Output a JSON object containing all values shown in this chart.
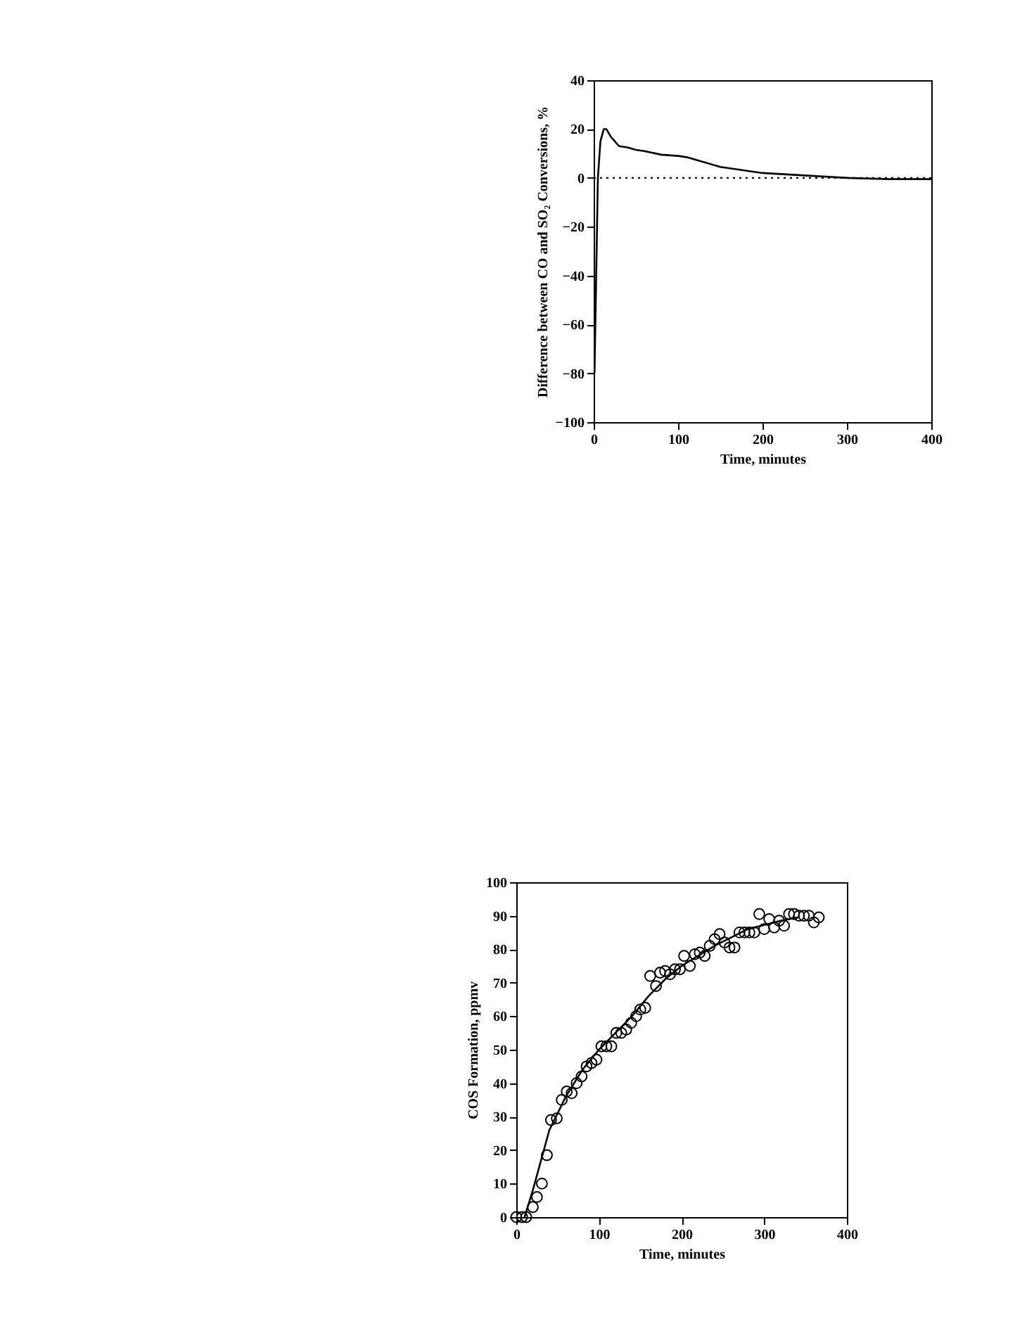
{
  "chart_data": [
    {
      "type": "line",
      "xlabel": "Time, minutes",
      "ylabel": "Difference between CO and SO₂ Conversions, %",
      "xlim": [
        0,
        400
      ],
      "ylim": [
        -100,
        40
      ],
      "xticks": [
        0,
        100,
        200,
        300,
        400
      ],
      "yticks": [
        -100,
        -80,
        -60,
        -40,
        -20,
        0,
        20,
        40
      ],
      "grid": false,
      "series": [
        {
          "color": "#000000",
          "x": [
            1,
            3,
            5,
            8,
            12,
            15,
            20,
            30,
            40,
            50,
            60,
            80,
            100,
            110,
            130,
            150,
            170,
            200,
            250,
            300,
            350,
            400
          ],
          "values": [
            -80,
            -40,
            0,
            15,
            20,
            20,
            17,
            13,
            12.5,
            11.5,
            11,
            9.5,
            9,
            8.5,
            6.5,
            4.5,
            3.5,
            2,
            1,
            0,
            -0.5,
            -0.5
          ]
        }
      ],
      "ref_lines": [
        {
          "axis": "y",
          "value": 0,
          "color": "#000000",
          "line_style": "dotted"
        }
      ]
    },
    {
      "type": "scatter",
      "xlabel": "Time, minutes",
      "ylabel": "COS Formation, ppmv",
      "xlim": [
        0,
        400
      ],
      "ylim": [
        0,
        100
      ],
      "xticks": [
        0,
        100,
        200,
        300,
        400
      ],
      "yticks": [
        0,
        10,
        20,
        30,
        40,
        50,
        60,
        70,
        80,
        90,
        100
      ],
      "grid": false,
      "series": [
        {
          "marker": "circle",
          "color": "#000000",
          "x": [
            0,
            7,
            12,
            20,
            25,
            31,
            37,
            42,
            49,
            55,
            61,
            67,
            73,
            79,
            85,
            91,
            97,
            103,
            109,
            115,
            121,
            127,
            133,
            139,
            145,
            150,
            156,
            162,
            169,
            174,
            180,
            186,
            192,
            198,
            203,
            210,
            216,
            222,
            228,
            234,
            240,
            246,
            252,
            258,
            264,
            270,
            276,
            282,
            288,
            294,
            300,
            306,
            312,
            318,
            324,
            330,
            336,
            342,
            348,
            354,
            360,
            366
          ],
          "values": [
            0,
            0,
            0,
            3,
            6,
            10,
            18.5,
            29,
            29.5,
            35,
            37.5,
            37,
            40,
            42,
            45,
            46,
            47,
            51,
            51,
            51,
            55,
            55,
            56,
            58,
            60,
            62,
            62.5,
            72,
            69,
            73,
            73.5,
            72.5,
            74,
            74,
            78,
            75,
            78.5,
            79,
            78,
            81,
            83,
            84.5,
            82,
            80.5,
            80.5,
            85,
            85,
            85,
            85,
            90.5,
            86,
            89,
            86.5,
            88.5,
            87,
            90.5,
            90.5,
            90,
            90,
            90,
            88,
            89.5
          ]
        },
        {
          "type": "line",
          "color": "#000000",
          "x": [
            10,
            20,
            40,
            60,
            80,
            100,
            120,
            140,
            160,
            180,
            200,
            240,
            280,
            320,
            340
          ],
          "values": [
            0,
            8,
            26,
            36,
            44,
            50,
            55,
            60,
            66,
            71,
            75,
            81,
            86,
            88.5,
            89.5
          ]
        }
      ]
    }
  ]
}
